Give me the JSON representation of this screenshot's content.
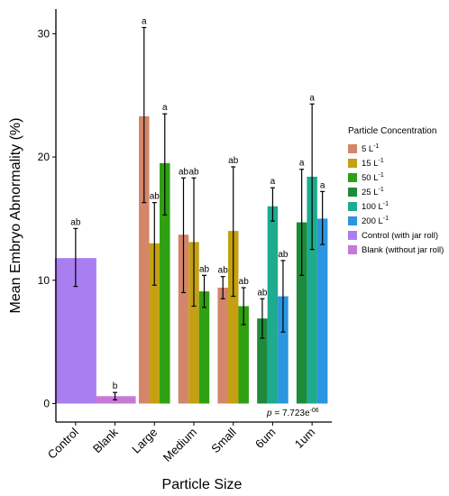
{
  "chart_data": {
    "type": "bar",
    "ylabel": "Mean Embryo Abnormality (%)",
    "xlabel": "Particle Size",
    "ylim": [
      -1.5,
      32
    ],
    "yticks": [
      0,
      10,
      20,
      30
    ],
    "categories": [
      "Control",
      "Blank",
      "Large",
      "Medium",
      "Small",
      "6um",
      "1um"
    ],
    "legend_title": "Particle Concentration",
    "legend_position": "right",
    "series": [
      {
        "name": "5 L-1",
        "name_base": "5 L",
        "name_exp": "-1",
        "color": "#d4856a"
      },
      {
        "name": "15 L-1",
        "name_base": "15 L",
        "name_exp": "-1",
        "color": "#c4a012"
      },
      {
        "name": "50 L-1",
        "name_base": "50 L",
        "name_exp": "-1",
        "color": "#2fa012"
      },
      {
        "name": "25 L-1",
        "name_base": "25 L",
        "name_exp": "-1",
        "color": "#1e8a3c"
      },
      {
        "name": "100 L-1",
        "name_base": "100 L",
        "name_exp": "-1",
        "color": "#1eab8e"
      },
      {
        "name": "200 L-1",
        "name_base": "200 L",
        "name_exp": "-1",
        "color": "#2a95e0"
      },
      {
        "name": "Control (with jar roll)",
        "color": "#a87ef0"
      },
      {
        "name": "Blank (without jar roll)",
        "color": "#c878d8"
      }
    ],
    "bars": [
      {
        "category": "Control",
        "series": "Control (with jar roll)",
        "value": 11.8,
        "error_low": 9.5,
        "error_high": 14.2,
        "label": "ab"
      },
      {
        "category": "Blank",
        "series": "Blank (without jar roll)",
        "value": 0.6,
        "error_low": 0.3,
        "error_high": 0.9,
        "label": "b"
      },
      {
        "category": "Large",
        "series": "5 L-1",
        "value": 23.3,
        "error_low": 16.3,
        "error_high": 30.5,
        "label": "a"
      },
      {
        "category": "Large",
        "series": "15 L-1",
        "value": 13.0,
        "error_low": 9.6,
        "error_high": 16.3,
        "label": "ab"
      },
      {
        "category": "Large",
        "series": "50 L-1",
        "value": 19.5,
        "error_low": 15.3,
        "error_high": 23.5,
        "label": "a"
      },
      {
        "category": "Medium",
        "series": "5 L-1",
        "value": 13.7,
        "error_low": 9.0,
        "error_high": 18.3,
        "label": "ab"
      },
      {
        "category": "Medium",
        "series": "15 L-1",
        "value": 13.1,
        "error_low": 7.9,
        "error_high": 18.3,
        "label": "ab"
      },
      {
        "category": "Medium",
        "series": "50 L-1",
        "value": 9.1,
        "error_low": 7.8,
        "error_high": 10.4,
        "label": "ab"
      },
      {
        "category": "Small",
        "series": "5 L-1",
        "value": 9.4,
        "error_low": 8.5,
        "error_high": 10.3,
        "label": "ab"
      },
      {
        "category": "Small",
        "series": "15 L-1",
        "value": 14.0,
        "error_low": 8.7,
        "error_high": 19.2,
        "label": "ab"
      },
      {
        "category": "Small",
        "series": "50 L-1",
        "value": 7.9,
        "error_low": 6.4,
        "error_high": 9.4,
        "label": "ab"
      },
      {
        "category": "6um",
        "series": "25 L-1",
        "value": 6.9,
        "error_low": 5.3,
        "error_high": 8.5,
        "label": "ab"
      },
      {
        "category": "6um",
        "series": "100 L-1",
        "value": 16.0,
        "error_low": 14.8,
        "error_high": 17.5,
        "label": "a"
      },
      {
        "category": "6um",
        "series": "200 L-1",
        "value": 8.7,
        "error_low": 5.8,
        "error_high": 11.6,
        "label": "ab"
      },
      {
        "category": "1um",
        "series": "25 L-1",
        "value": 14.7,
        "error_low": 10.4,
        "error_high": 19.0,
        "label": "a"
      },
      {
        "category": "1um",
        "series": "100 L-1",
        "value": 18.4,
        "error_low": 12.5,
        "error_high": 24.3,
        "label": "a"
      },
      {
        "category": "1um",
        "series": "200 L-1",
        "value": 15.0,
        "error_low": 12.9,
        "error_high": 17.2,
        "label": "a"
      }
    ],
    "annotation": {
      "prefix": "p",
      "text": " = 7.723e",
      "exponent": "-06"
    }
  }
}
